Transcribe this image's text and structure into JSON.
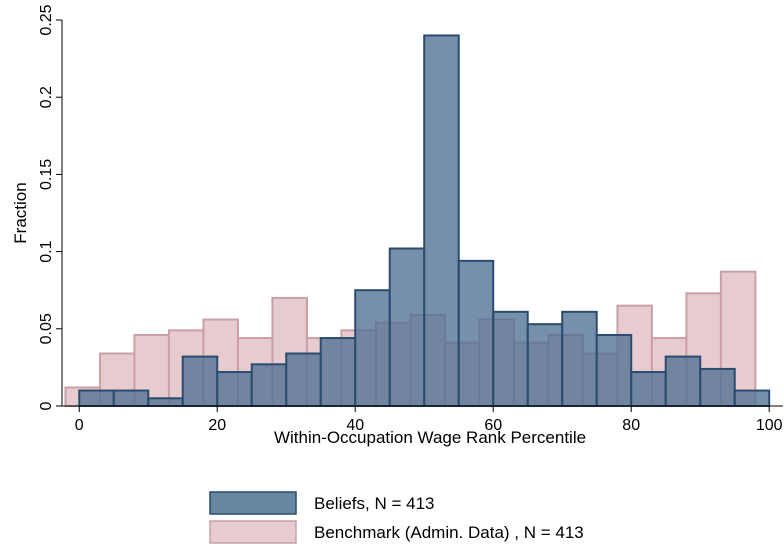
{
  "chart_data": {
    "type": "bar",
    "xlabel": "Within-Occupation Wage Rank Percentile",
    "ylabel": "Fraction",
    "xlim": [
      -2.5,
      102
    ],
    "ylim": [
      0,
      0.25
    ],
    "xticks": [
      0,
      20,
      40,
      60,
      80,
      100
    ],
    "yticks": [
      0,
      0.05,
      0.1,
      0.15,
      0.2,
      0.25
    ],
    "ytick_labels": [
      "0",
      "0.05",
      "0.1",
      "0.15",
      "0.2",
      "0.25"
    ],
    "grid": false,
    "legend_position": "bottom",
    "series": [
      {
        "name": "Benchmark (Admin. Data) , N = 413",
        "color_fill": "#e6cbcf",
        "color_edge": "#c9a0a6",
        "bin_width": 5,
        "bins": [
          {
            "x0": -2,
            "value": 0.012
          },
          {
            "x0": 3,
            "value": 0.034
          },
          {
            "x0": 8,
            "value": 0.046
          },
          {
            "x0": 13,
            "value": 0.049
          },
          {
            "x0": 18,
            "value": 0.056
          },
          {
            "x0": 23,
            "value": 0.044
          },
          {
            "x0": 28,
            "value": 0.07
          },
          {
            "x0": 33,
            "value": 0.044
          },
          {
            "x0": 38,
            "value": 0.049
          },
          {
            "x0": 43,
            "value": 0.054
          },
          {
            "x0": 48,
            "value": 0.059
          },
          {
            "x0": 53,
            "value": 0.041
          },
          {
            "x0": 58,
            "value": 0.056
          },
          {
            "x0": 63,
            "value": 0.041
          },
          {
            "x0": 68,
            "value": 0.046
          },
          {
            "x0": 73,
            "value": 0.034
          },
          {
            "x0": 78,
            "value": 0.065
          },
          {
            "x0": 83,
            "value": 0.044
          },
          {
            "x0": 88,
            "value": 0.073
          },
          {
            "x0": 93,
            "value": 0.087
          }
        ]
      },
      {
        "name": "Beliefs, N = 413",
        "color_fill": "#4f7193",
        "color_edge": "#2b4c6f",
        "bin_width": 5,
        "bins": [
          {
            "x0": 0,
            "value": 0.01
          },
          {
            "x0": 5,
            "value": 0.01
          },
          {
            "x0": 10,
            "value": 0.005
          },
          {
            "x0": 15,
            "value": 0.032
          },
          {
            "x0": 20,
            "value": 0.022
          },
          {
            "x0": 25,
            "value": 0.027
          },
          {
            "x0": 30,
            "value": 0.034
          },
          {
            "x0": 35,
            "value": 0.044
          },
          {
            "x0": 40,
            "value": 0.075
          },
          {
            "x0": 45,
            "value": 0.102
          },
          {
            "x0": 50,
            "value": 0.24
          },
          {
            "x0": 55,
            "value": 0.094
          },
          {
            "x0": 60,
            "value": 0.061
          },
          {
            "x0": 65,
            "value": 0.053
          },
          {
            "x0": 70,
            "value": 0.061
          },
          {
            "x0": 75,
            "value": 0.046
          },
          {
            "x0": 80,
            "value": 0.022
          },
          {
            "x0": 85,
            "value": 0.032
          },
          {
            "x0": 90,
            "value": 0.024
          },
          {
            "x0": 95,
            "value": 0.01
          }
        ]
      }
    ]
  },
  "legend": {
    "items": [
      {
        "label": "Beliefs, N = 413",
        "fill": "#4f7193",
        "edge": "#2b4c6f"
      },
      {
        "label": "Benchmark (Admin. Data) , N = 413",
        "fill": "#e6cbcf",
        "edge": "#c9a0a6"
      }
    ]
  }
}
